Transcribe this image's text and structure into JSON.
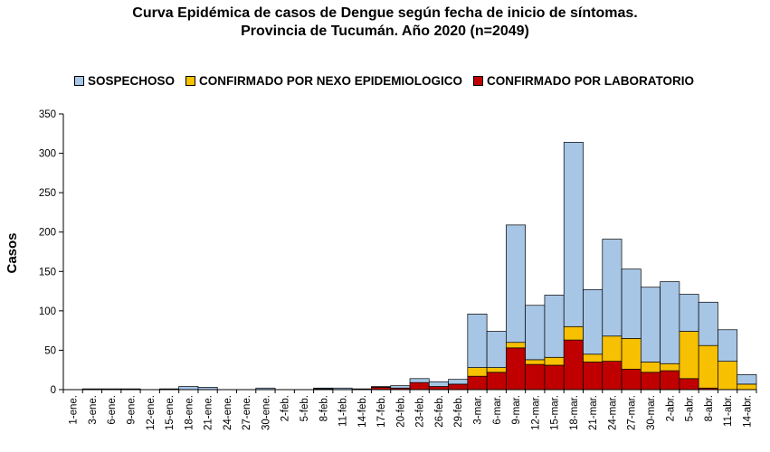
{
  "chart_data": {
    "type": "bar",
    "stacked": true,
    "title": "Curva Epidémica de casos de Dengue según fecha de inicio de síntomas.",
    "subtitle": "Provincia de Tucumán. Año 2020 (n=2049)",
    "ylabel": "Casos",
    "xlabel": "",
    "ylim": [
      0,
      350
    ],
    "yticks": [
      0,
      50,
      100,
      150,
      200,
      250,
      300,
      350
    ],
    "grid": false,
    "legend_position": "top",
    "categories": [
      "1-ene.",
      "",
      "3-ene.",
      "",
      "6-ene.",
      "",
      "9-ene.",
      "",
      "12-ene.",
      "",
      "15-ene.",
      "",
      "18-ene.",
      "",
      "21-ene.",
      "",
      "24-ene.",
      "",
      "27-ene.",
      "",
      "30-ene.",
      "",
      "2-feb.",
      "",
      "5-feb.",
      "",
      "8-feb.",
      "",
      "11-feb.",
      "",
      "14-feb.",
      "",
      "17-feb.",
      "",
      "20-feb.",
      "",
      "23-feb.",
      "",
      "26-feb.",
      "",
      "29-feb.",
      "",
      "3-mar.",
      "",
      "6-mar.",
      "",
      "9-mar.",
      "",
      "12-mar.",
      "",
      "15-mar.",
      "",
      "18-mar.",
      "",
      "21-mar.",
      "",
      "24-mar.",
      "",
      "27-mar.",
      "",
      "30-mar.",
      "",
      "2-abr.",
      "",
      "5-abr.",
      "",
      "8-abr.",
      "",
      "11-abr.",
      "",
      "14-abr."
    ],
    "tick_labels": [
      "1-ene.",
      "3-ene.",
      "6-ene.",
      "9-ene.",
      "12-ene.",
      "15-ene.",
      "18-ene.",
      "21-ene.",
      "24-ene.",
      "27-ene.",
      "30-ene.",
      "2-feb.",
      "5-feb.",
      "8-feb.",
      "11-feb.",
      "14-feb.",
      "17-feb.",
      "20-feb.",
      "23-feb.",
      "26-feb.",
      "29-feb.",
      "3-mar.",
      "6-mar.",
      "9-mar.",
      "12-mar.",
      "15-mar.",
      "18-mar.",
      "21-mar.",
      "24-mar.",
      "27-mar.",
      "30-mar.",
      "2-abr.",
      "5-abr.",
      "8-abr.",
      "11-abr.",
      "14-abr."
    ],
    "bars": [
      {
        "label": "1-ene.",
        "laboratorio": 0,
        "nexo": 0,
        "sospechoso": 0
      },
      {
        "label": "3-ene.",
        "laboratorio": 0,
        "nexo": 0,
        "sospechoso": 1
      },
      {
        "label": "6-ene.",
        "laboratorio": 0,
        "nexo": 0,
        "sospechoso": 1
      },
      {
        "label": "9-ene.",
        "laboratorio": 0,
        "nexo": 0,
        "sospechoso": 1
      },
      {
        "label": "12-ene.",
        "laboratorio": 0,
        "nexo": 0,
        "sospechoso": 0
      },
      {
        "label": "15-ene.",
        "laboratorio": 0,
        "nexo": 0,
        "sospechoso": 1
      },
      {
        "label": "18-ene.",
        "laboratorio": 0,
        "nexo": 0,
        "sospechoso": 4
      },
      {
        "label": "21-ene.",
        "laboratorio": 0,
        "nexo": 0,
        "sospechoso": 3
      },
      {
        "label": "24-ene.",
        "laboratorio": 0,
        "nexo": 0,
        "sospechoso": 0
      },
      {
        "label": "27-ene.",
        "laboratorio": 0,
        "nexo": 0,
        "sospechoso": 0
      },
      {
        "label": "30-ene.",
        "laboratorio": 0,
        "nexo": 0,
        "sospechoso": 2
      },
      {
        "label": "2-feb.",
        "laboratorio": 0,
        "nexo": 0,
        "sospechoso": 0
      },
      {
        "label": "5-feb.",
        "laboratorio": 0,
        "nexo": 0,
        "sospechoso": 0
      },
      {
        "label": "8-feb.",
        "laboratorio": 1,
        "nexo": 0,
        "sospechoso": 1
      },
      {
        "label": "11-feb.",
        "laboratorio": 0,
        "nexo": 0,
        "sospechoso": 2
      },
      {
        "label": "14-feb.",
        "laboratorio": 1,
        "nexo": 0,
        "sospechoso": 0
      },
      {
        "label": "17-feb.",
        "laboratorio": 3,
        "nexo": 0,
        "sospechoso": 1
      },
      {
        "label": "20-feb.",
        "laboratorio": 2,
        "nexo": 0,
        "sospechoso": 3
      },
      {
        "label": "23-feb.",
        "laboratorio": 9,
        "nexo": 0,
        "sospechoso": 5
      },
      {
        "label": "26-feb.",
        "laboratorio": 4,
        "nexo": 0,
        "sospechoso": 6
      },
      {
        "label": "29-feb.",
        "laboratorio": 7,
        "nexo": 0,
        "sospechoso": 6
      },
      {
        "label": "3-mar.",
        "laboratorio": 17,
        "nexo": 11,
        "sospechoso": 68
      },
      {
        "label": "6-mar.",
        "laboratorio": 22,
        "nexo": 6,
        "sospechoso": 46
      },
      {
        "label": "9-mar.",
        "laboratorio": 53,
        "nexo": 7,
        "sospechoso": 149
      },
      {
        "label": "12-mar.",
        "laboratorio": 32,
        "nexo": 6,
        "sospechoso": 69
      },
      {
        "label": "15-mar.",
        "laboratorio": 31,
        "nexo": 10,
        "sospechoso": 79
      },
      {
        "label": "18-mar.",
        "laboratorio": 63,
        "nexo": 17,
        "sospechoso": 234
      },
      {
        "label": "21-mar.",
        "laboratorio": 35,
        "nexo": 10,
        "sospechoso": 82
      },
      {
        "label": "24-mar.",
        "laboratorio": 36,
        "nexo": 32,
        "sospechoso": 123
      },
      {
        "label": "27-mar.",
        "laboratorio": 26,
        "nexo": 39,
        "sospechoso": 88
      },
      {
        "label": "30-mar.",
        "laboratorio": 22,
        "nexo": 13,
        "sospechoso": 95
      },
      {
        "label": "2-abr.",
        "laboratorio": 24,
        "nexo": 9,
        "sospechoso": 104
      },
      {
        "label": "5-abr.",
        "laboratorio": 14,
        "nexo": 60,
        "sospechoso": 47
      },
      {
        "label": "8-abr.",
        "laboratorio": 2,
        "nexo": 54,
        "sospechoso": 55
      },
      {
        "label": "11-abr.",
        "laboratorio": 0,
        "nexo": 36,
        "sospechoso": 40
      },
      {
        "label": "14-abr.",
        "laboratorio": 0,
        "nexo": 7,
        "sospechoso": 12
      }
    ],
    "series": [
      {
        "name": "SOSPECHOSO",
        "key": "sospechoso",
        "color": "#a7c6e6"
      },
      {
        "name": "CONFIRMADO POR NEXO EPIDEMIOLOGICO",
        "key": "nexo",
        "color": "#f7c000"
      },
      {
        "name": "CONFIRMADO POR LABORATORIO",
        "key": "laboratorio",
        "color": "#c00000"
      }
    ]
  }
}
